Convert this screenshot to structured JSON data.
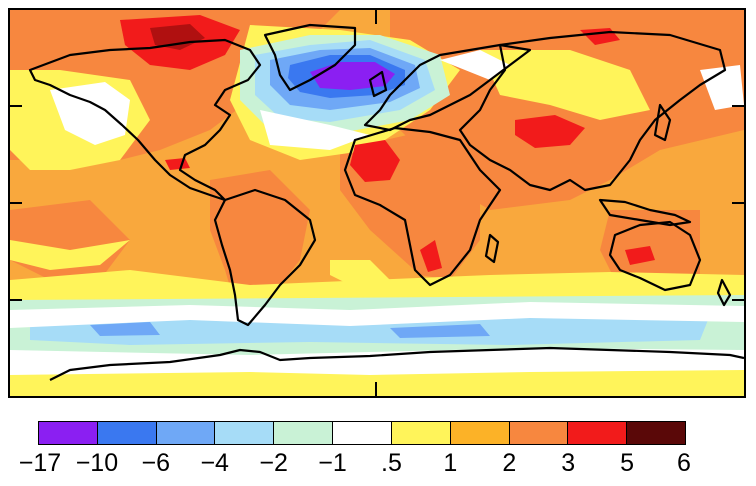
{
  "colors": {
    "band_colors": [
      "#8b1ff2",
      "#3a78f0",
      "#6fa8f6",
      "#a6dcf7",
      "#c9f2d6",
      "#ffffff",
      "#fff45a",
      "#fcb227",
      "#f7873f",
      "#f21b1b",
      "#5a0808"
    ],
    "ocean_base": "#f9a83d",
    "coast": "#000000"
  },
  "colorbar": {
    "labels": [
      "−17",
      "−10",
      "−6",
      "−4",
      "−2",
      "−1",
      ".5",
      "1",
      "2",
      "3",
      "5",
      "6"
    ]
  }
}
